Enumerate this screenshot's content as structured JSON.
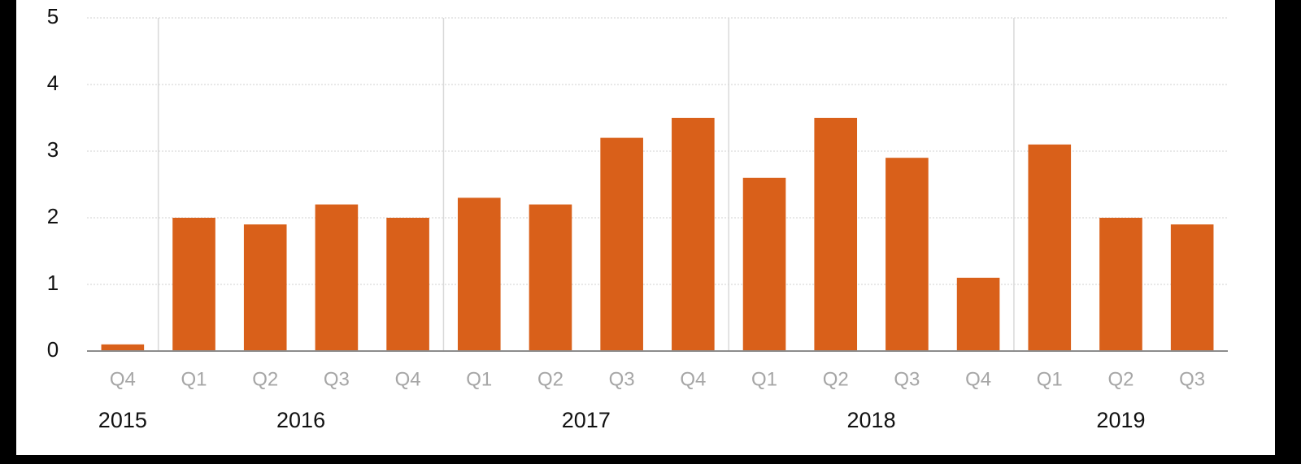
{
  "chart_data": {
    "type": "bar",
    "color": "#d9601a",
    "ylim": [
      0,
      5
    ],
    "yticks": [
      0,
      1,
      2,
      3,
      4,
      5
    ],
    "grid": true,
    "groups": [
      {
        "name": "2015",
        "categories": [
          "Q4"
        ],
        "values": [
          0.1
        ]
      },
      {
        "name": "2016",
        "categories": [
          "Q1",
          "Q2",
          "Q3",
          "Q4"
        ],
        "values": [
          2.0,
          1.9,
          2.2,
          2.0
        ]
      },
      {
        "name": "2017",
        "categories": [
          "Q1",
          "Q2",
          "Q3",
          "Q4"
        ],
        "values": [
          2.3,
          2.2,
          3.2,
          3.5
        ]
      },
      {
        "name": "2018",
        "categories": [
          "Q1",
          "Q2",
          "Q3",
          "Q4"
        ],
        "values": [
          2.6,
          3.5,
          2.9,
          1.1
        ]
      },
      {
        "name": "2019",
        "categories": [
          "Q1",
          "Q2",
          "Q3"
        ],
        "values": [
          3.1,
          2.0,
          1.9
        ]
      }
    ]
  }
}
